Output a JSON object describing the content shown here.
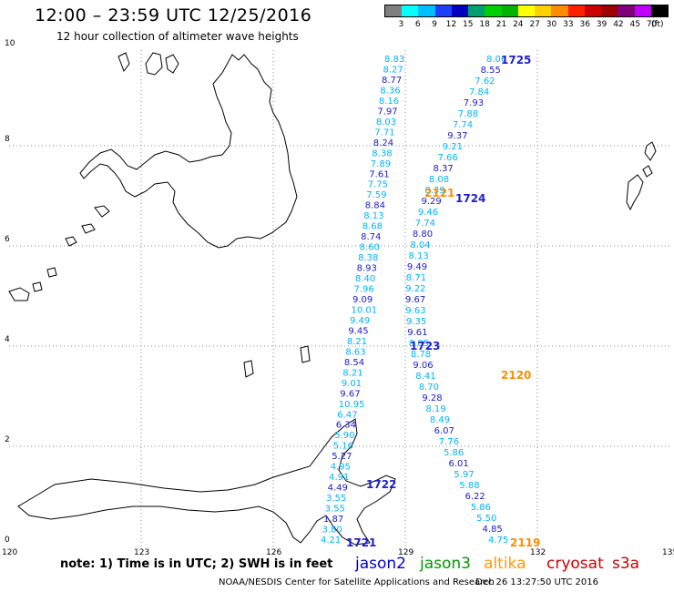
{
  "header": {
    "title": "12:00 – 23:59 UTC 12/25/2016",
    "subtitle": "12 hour collection of altimeter wave heights"
  },
  "color_scale": {
    "labels": [
      "3",
      "6",
      "9",
      "12",
      "15",
      "18",
      "21",
      "24",
      "27",
      "30",
      "33",
      "36",
      "39",
      "42",
      "45",
      "70"
    ],
    "unit": "(ft)",
    "colors": [
      "#7f7f7f",
      "#00ffff",
      "#00bfff",
      "#1f3fff",
      "#0000c0",
      "#009f6f",
      "#00d000",
      "#00b400",
      "#ffff00",
      "#ffd000",
      "#ff8c00",
      "#ff2000",
      "#cc0000",
      "#9e0000",
      "#80007a",
      "#c000ff",
      "#000000"
    ]
  },
  "axes": {
    "x_ticks": [
      "120",
      "123",
      "126",
      "129",
      "132",
      "135"
    ],
    "y_ticks": [
      "0",
      "2",
      "4",
      "6",
      "8",
      "10"
    ]
  },
  "pass_labels": [
    {
      "id": "1725",
      "color": "#1f1fcc"
    },
    {
      "id": "1724",
      "color": "#1f1fcc"
    },
    {
      "id": "1723",
      "color": "#1f1fcc"
    },
    {
      "id": "1722",
      "color": "#1f1fcc"
    },
    {
      "id": "1721",
      "color": "#1f1fcc"
    },
    {
      "id": "2121",
      "color": "#ff8c00"
    },
    {
      "id": "2120",
      "color": "#ff8c00"
    },
    {
      "id": "2119",
      "color": "#ff8c00"
    }
  ],
  "tracks": [
    {
      "name": "jason2-track-a",
      "values": [
        "8.83",
        "8.27",
        "8.77",
        "8.36",
        "8.16",
        "7.97",
        "8.03",
        "7.71",
        "8.24",
        "8.38",
        "7.89",
        "7.61",
        "7.75",
        "7.59",
        "8.84",
        "8.13",
        "8.68",
        "8.74",
        "8.60",
        "8.38",
        "8.93",
        "8.40",
        "7.96",
        "9.09",
        "10.01",
        "9.49",
        "9.45",
        "8.21",
        "8.63",
        "8.54",
        "8.21",
        "9.01",
        "9.67",
        "10.95",
        "6.47",
        "6.34",
        "5.90",
        "5.16",
        "5.27",
        "4.95",
        "4.91",
        "4.49",
        "3.55",
        "3.55",
        "1.87",
        "3.80",
        "4.21"
      ]
    },
    {
      "name": "jason2-track-b",
      "values": [
        "8.06",
        "8.55",
        "7.62",
        "7.84",
        "7.93",
        "7.88",
        "7.74",
        "9.37",
        "9.21",
        "7.66",
        "8.37",
        "8.08",
        "8.39",
        "9.29",
        "9.46",
        "7.74",
        "8.80",
        "8.04",
        "8.13",
        "9.49",
        "8.71",
        "9.22",
        "9.67",
        "9.63",
        "9.35",
        "9.61",
        "8.85",
        "8.78",
        "9.06",
        "8.41",
        "8.70",
        "9.28",
        "8.19",
        "8.49",
        "6.07",
        "7.76",
        "5.86",
        "6.01",
        "5.97",
        "5.88",
        "6.22",
        "5.86",
        "5.50",
        "4.85",
        "4.75"
      ]
    }
  ],
  "legend": {
    "note": "note:  1) Time is in UTC;  2) SWH is in feet",
    "items": [
      {
        "label": "jason2",
        "color": "#0000cc"
      },
      {
        "label": "jason3",
        "color": "#009900"
      },
      {
        "label": "altika",
        "color": "#ff9900"
      },
      {
        "label": "cryosat",
        "color": "#cc0000"
      },
      {
        "label": "s3a",
        "color": "#cc0000"
      }
    ]
  },
  "footer": {
    "credit": "NOAA/NESDIS Center for Satellite Applications and Research",
    "timestamp": "Dec 26 13:27:50 UTC 2016"
  }
}
